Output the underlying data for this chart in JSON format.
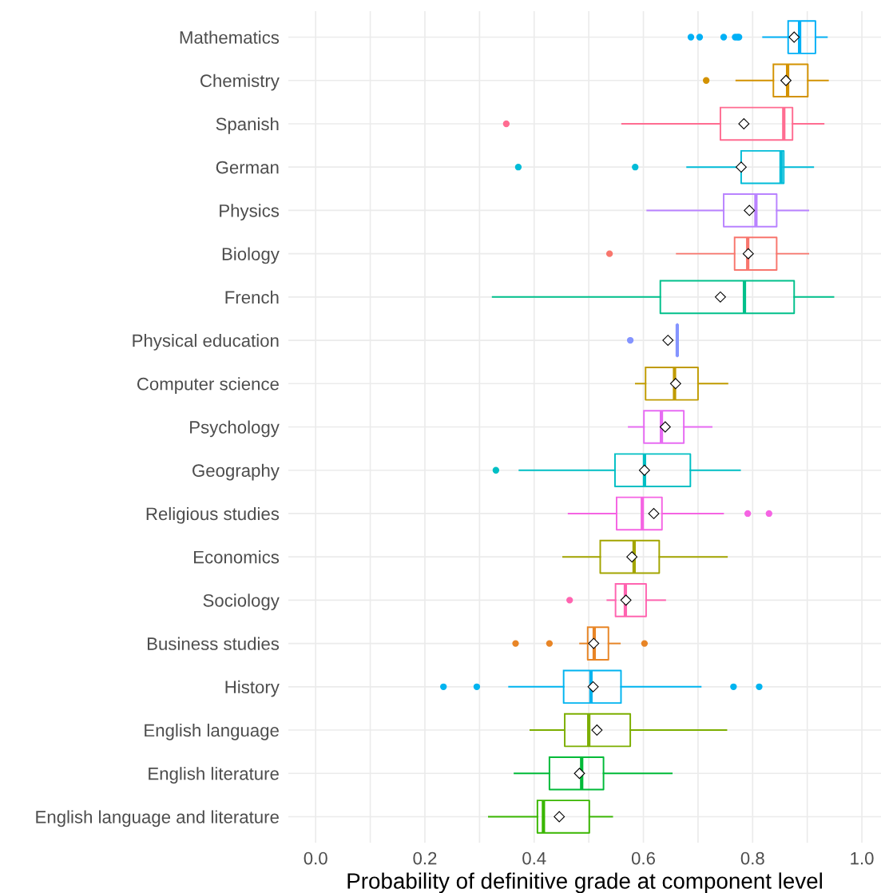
{
  "chart_data": {
    "type": "box",
    "orientation": "horizontal",
    "xlabel": "Probability of definitive grade at component level",
    "categories": [
      "Mathematics",
      "Chemistry",
      "Spanish",
      "German",
      "Physics",
      "Biology",
      "French",
      "Physical education",
      "Computer science",
      "Psychology",
      "Geography",
      "Religious studies",
      "Economics",
      "Sociology",
      "Business studies",
      "History",
      "English language",
      "English literature",
      "English language and literature"
    ],
    "colors": [
      "#00b0f6",
      "#d39200",
      "#ff6c91",
      "#00bcd8",
      "#b983ff",
      "#f8766d",
      "#00c08b",
      "#8494ff",
      "#c09b00",
      "#e76bf3",
      "#00bfc4",
      "#f564e3",
      "#a3a500",
      "#ff64b0",
      "#e88526",
      "#00b4f0",
      "#7cae00",
      "#00ba38",
      "#39b600"
    ],
    "boxes": [
      {
        "low": 0.819,
        "q1": 0.865,
        "median": 0.886,
        "q3": 0.915,
        "high": 0.936,
        "mean": 0.876,
        "outliers": [
          0.687,
          0.703,
          0.747,
          0.768,
          0.772,
          0.775
        ]
      },
      {
        "low": 0.77,
        "q1": 0.838,
        "median": 0.864,
        "q3": 0.901,
        "high": 0.938,
        "mean": 0.861,
        "outliers": [
          0.715
        ]
      },
      {
        "low": 0.561,
        "q1": 0.741,
        "median": 0.857,
        "q3": 0.873,
        "high": 0.93,
        "mean": 0.784,
        "outliers": [
          0.349
        ]
      },
      {
        "low": 0.68,
        "q1": 0.779,
        "median": 0.852,
        "q3": 0.857,
        "high": 0.911,
        "mean": 0.779,
        "outliers": [
          0.371,
          0.585
        ]
      },
      {
        "low": 0.607,
        "q1": 0.747,
        "median": 0.806,
        "q3": 0.844,
        "high": 0.902,
        "mean": 0.794
      },
      {
        "low": 0.661,
        "q1": 0.767,
        "median": 0.791,
        "q3": 0.844,
        "high": 0.902,
        "mean": 0.792,
        "outliers": [
          0.538
        ]
      },
      {
        "low": 0.324,
        "q1": 0.631,
        "median": 0.785,
        "q3": 0.876,
        "high": 0.948,
        "mean": 0.741
      },
      {
        "low": 0.662,
        "q1": 0.662,
        "median": 0.662,
        "q3": 0.662,
        "high": 0.662,
        "mean": 0.645,
        "outliers": [
          0.576
        ]
      },
      {
        "low": 0.586,
        "q1": 0.604,
        "median": 0.657,
        "q3": 0.7,
        "high": 0.754,
        "mean": 0.659
      },
      {
        "low": 0.573,
        "q1": 0.601,
        "median": 0.633,
        "q3": 0.674,
        "high": 0.725,
        "mean": 0.64
      },
      {
        "low": 0.373,
        "q1": 0.548,
        "median": 0.602,
        "q3": 0.686,
        "high": 0.777,
        "mean": 0.602,
        "outliers": [
          0.33
        ]
      },
      {
        "low": 0.463,
        "q1": 0.551,
        "median": 0.598,
        "q3": 0.634,
        "high": 0.746,
        "mean": 0.619,
        "outliers": [
          0.791,
          0.83
        ]
      },
      {
        "low": 0.453,
        "q1": 0.521,
        "median": 0.583,
        "q3": 0.629,
        "high": 0.753,
        "mean": 0.579
      },
      {
        "low": 0.534,
        "q1": 0.549,
        "median": 0.567,
        "q3": 0.605,
        "high": 0.64,
        "mean": 0.568,
        "outliers": [
          0.465
        ]
      },
      {
        "low": 0.484,
        "q1": 0.498,
        "median": 0.51,
        "q3": 0.536,
        "high": 0.557,
        "mean": 0.509,
        "outliers": [
          0.366,
          0.428,
          0.602
        ]
      },
      {
        "low": 0.354,
        "q1": 0.454,
        "median": 0.504,
        "q3": 0.559,
        "high": 0.705,
        "mean": 0.508,
        "outliers": [
          0.234,
          0.295,
          0.765,
          0.812
        ]
      },
      {
        "low": 0.393,
        "q1": 0.456,
        "median": 0.5,
        "q3": 0.576,
        "high": 0.752,
        "mean": 0.515
      },
      {
        "low": 0.364,
        "q1": 0.428,
        "median": 0.487,
        "q3": 0.527,
        "high": 0.652,
        "mean": 0.483
      },
      {
        "low": 0.317,
        "q1": 0.406,
        "median": 0.417,
        "q3": 0.501,
        "high": 0.543,
        "mean": 0.446
      }
    ],
    "xlim": [
      -0.05,
      1.035
    ],
    "xticks": [
      {
        "value": 0.0,
        "label": "0.0"
      },
      {
        "value": 0.1,
        "label": null
      },
      {
        "value": 0.2,
        "label": "0.2"
      },
      {
        "value": 0.3,
        "label": null
      },
      {
        "value": 0.4,
        "label": "0.4"
      },
      {
        "value": 0.5,
        "label": null
      },
      {
        "value": 0.6,
        "label": "0.6"
      },
      {
        "value": 0.7,
        "label": null
      },
      {
        "value": 0.8,
        "label": "0.8"
      },
      {
        "value": 0.9,
        "label": null
      },
      {
        "value": 1.0,
        "label": "1.0"
      }
    ],
    "grid": true,
    "legend": false
  }
}
